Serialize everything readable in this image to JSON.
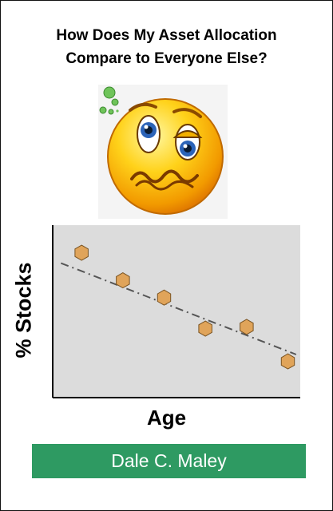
{
  "cover": {
    "title_line1": "How Does My Asset Allocation",
    "title_line2": "Compare to Everyone Else?",
    "author": "Dale C. Maley",
    "illustration": "worried-smiley-emoji-icon"
  },
  "chart_data": {
    "type": "scatter",
    "xlabel": "Age",
    "ylabel": "% Stocks",
    "grid": false,
    "trendline": "dash-dot",
    "marker": "hexagon",
    "x": [
      1,
      2,
      3,
      4,
      5,
      6
    ],
    "y": [
      84,
      68,
      58,
      40,
      41,
      21
    ],
    "xlim": [
      0.3,
      6.3
    ],
    "ylim": [
      0,
      100
    ],
    "trend": [
      [
        0.5,
        78
      ],
      [
        6.2,
        25
      ]
    ],
    "colors": {
      "plot_bg": "#dcdcdc",
      "marker_fill": "#e0a45a",
      "marker_edge": "#7a5423",
      "trend": "#555555"
    }
  },
  "colors": {
    "author_bar": "#2e9a62",
    "author_text": "#ffffff"
  }
}
